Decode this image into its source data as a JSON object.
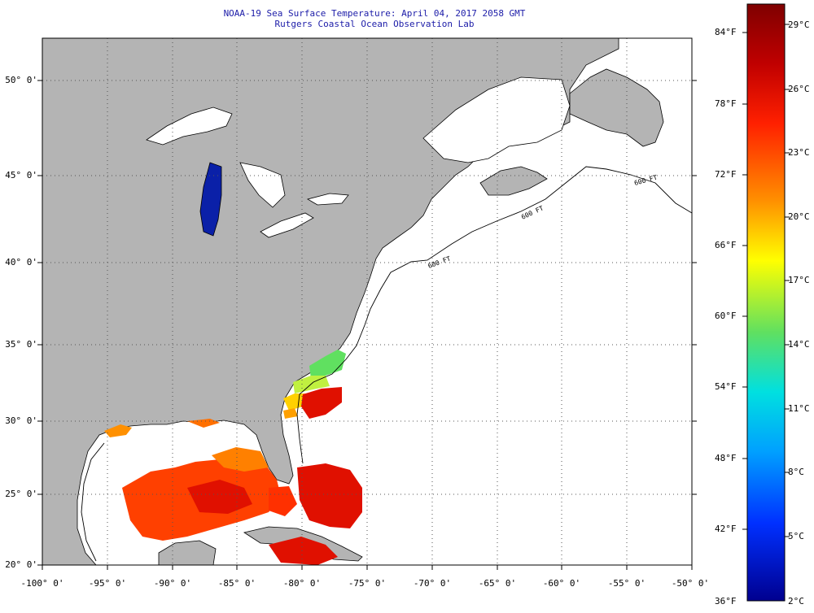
{
  "title": {
    "line1": "NOAA-19 Sea Surface Temperature:  April 04, 2017 2058 GMT",
    "line2": "Rutgers Coastal Ocean Observation Lab"
  },
  "map": {
    "lat_labels": [
      "50° 0'",
      "45° 0'",
      "40° 0'",
      "35° 0'",
      "30° 0'",
      "25° 0'",
      "20° 0'"
    ],
    "lon_labels": [
      "-100° 0'",
      "-95° 0'",
      "-90° 0'",
      "-85° 0'",
      "-80° 0'",
      "-75° 0'",
      "-70° 0'",
      "-65° 0'",
      "-60° 0'",
      "-55° 0'",
      "-50° 0'"
    ],
    "isobath_label": "600 FT",
    "colors": {
      "land": "#b4b4b4",
      "ocean": "#ffffff",
      "grid": "#555555"
    }
  },
  "colorbar": {
    "fahrenheit_labels": [
      "84°F",
      "78°F",
      "72°F",
      "66°F",
      "60°F",
      "54°F",
      "48°F",
      "42°F",
      "36°F"
    ],
    "celsius_labels": [
      "29°C",
      "26°C",
      "23°C",
      "20°C",
      "17°C",
      "14°C",
      "11°C",
      "8°C",
      "5°C",
      "2°C"
    ],
    "colors": [
      "#7f0000",
      "#d00000",
      "#ff4000",
      "#ff9000",
      "#ffff00",
      "#60e060",
      "#00e0e0",
      "#00a0ff",
      "#0040ff",
      "#00008f"
    ]
  }
}
